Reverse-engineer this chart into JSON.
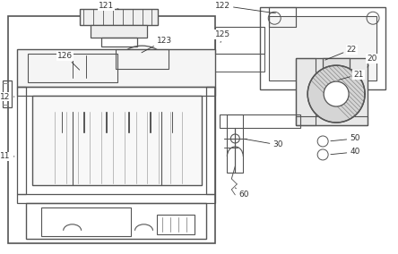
{
  "bg_color": "#ffffff",
  "lc": "#888888",
  "dc": "#555555",
  "figsize": [
    4.44,
    2.84
  ],
  "dpi": 100,
  "label_fs": 6.5,
  "label_color": "#333333"
}
